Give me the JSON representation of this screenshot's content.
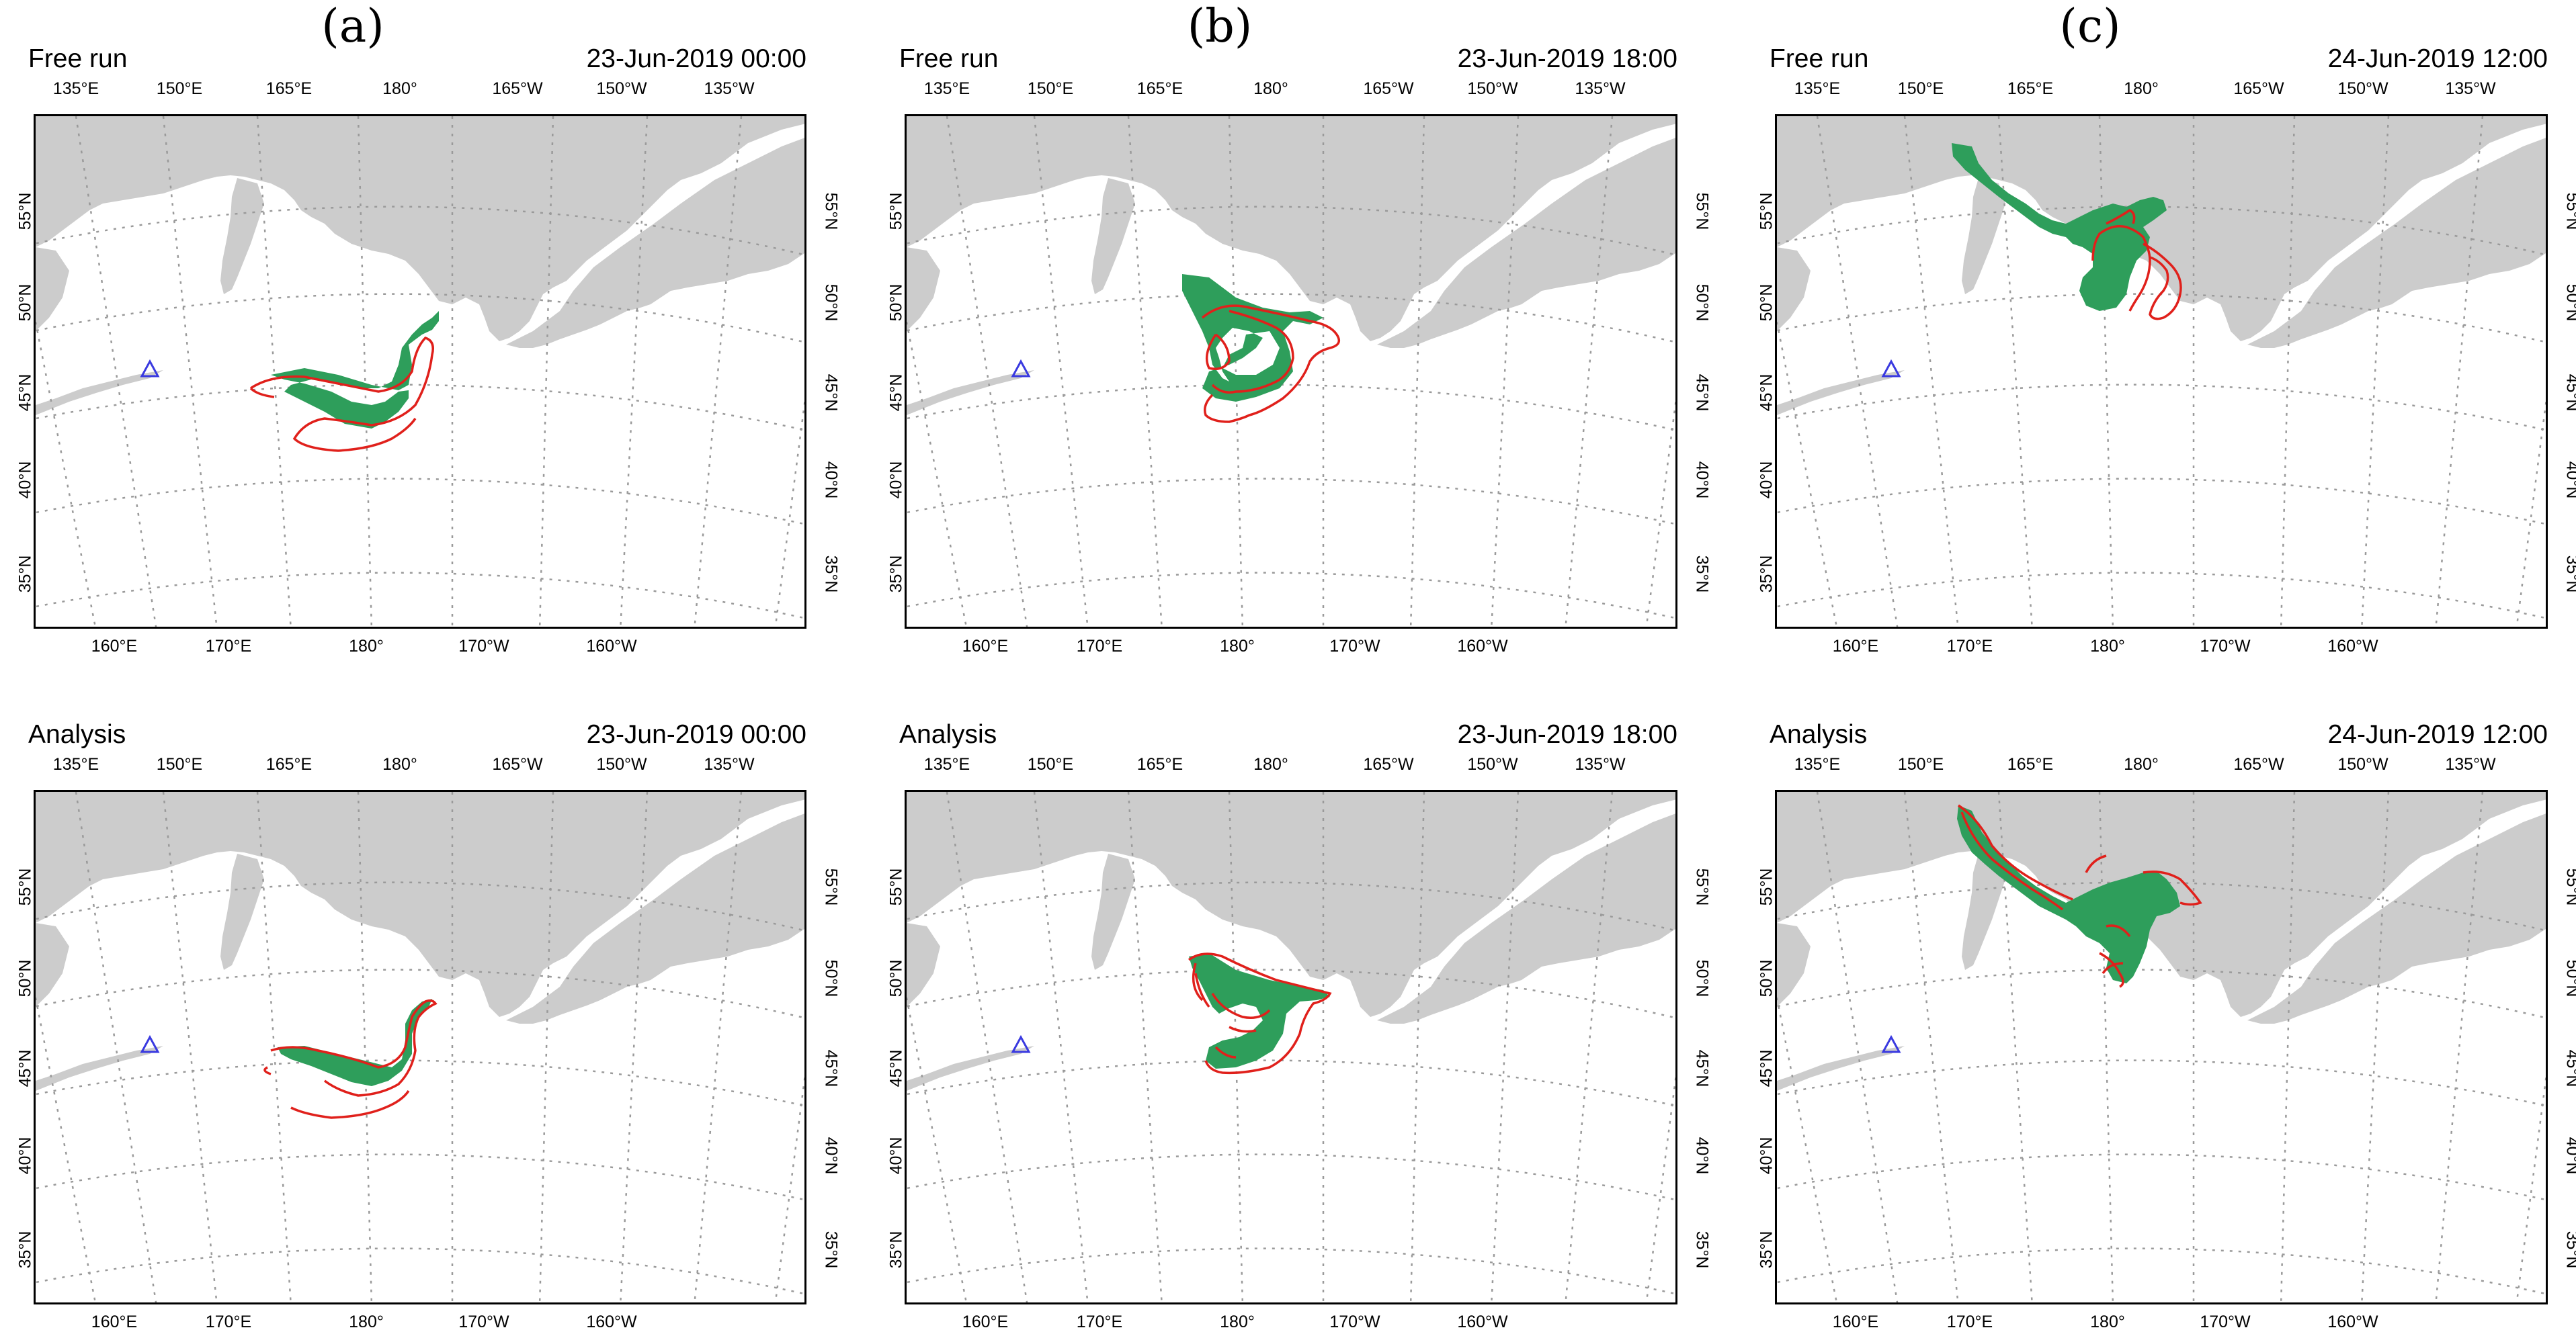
{
  "columns": [
    {
      "label": "(a)"
    },
    {
      "label": "(b)"
    },
    {
      "label": "(c)"
    }
  ],
  "panels": [
    {
      "name": "Free run",
      "date": "23-Jun-2019 00:00",
      "col": 0,
      "row": 0
    },
    {
      "name": "Free run",
      "date": "23-Jun-2019 18:00",
      "col": 1,
      "row": 0
    },
    {
      "name": "Free run",
      "date": "24-Jun-2019 12:00",
      "col": 2,
      "row": 0
    },
    {
      "name": "Analysis",
      "date": "23-Jun-2019 00:00",
      "col": 0,
      "row": 1
    },
    {
      "name": "Analysis",
      "date": "23-Jun-2019 18:00",
      "col": 1,
      "row": 1
    },
    {
      "name": "Analysis",
      "date": "24-Jun-2019 12:00",
      "col": 2,
      "row": 1
    }
  ],
  "axes": {
    "top": [
      "135°E",
      "150°E",
      "165°E",
      "180°",
      "165°W",
      "150°W",
      "135°W"
    ],
    "bottom": [
      "160°E",
      "170°E",
      "180°",
      "170°W",
      "160°W"
    ],
    "left": [
      "55°N",
      "50°N",
      "45°N",
      "40°N",
      "35°N"
    ],
    "right": [
      "55°N",
      "50°N",
      "45°N",
      "40°N",
      "35°N"
    ]
  },
  "colors": {
    "land": "#cccccc",
    "plume": "#2e9e5b",
    "contour": "#e0201b",
    "volcano_marker": "#3a3ae0",
    "gridline": "#9a9a9a"
  },
  "legend_items": {
    "volcano_marker_icon": "triangle-outline-icon"
  }
}
